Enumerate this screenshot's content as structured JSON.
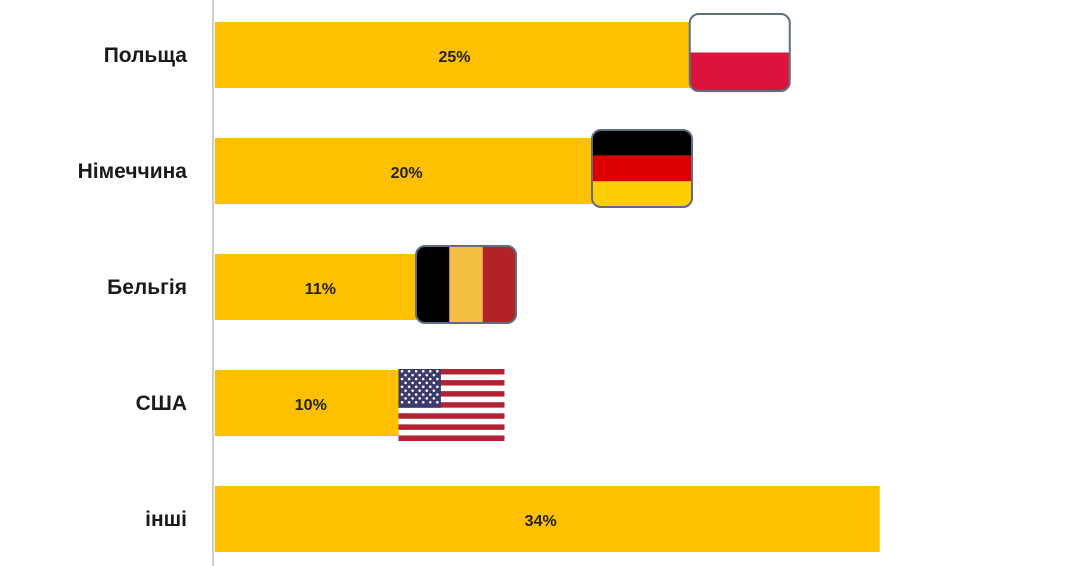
{
  "chart_data": {
    "type": "bar",
    "orientation": "horizontal",
    "categories": [
      "Польща",
      "Німеччина",
      "Бельгія",
      "США",
      "інші"
    ],
    "values": [
      25,
      20,
      11,
      10,
      34
    ],
    "value_labels": [
      "25%",
      "20%",
      "11%",
      "10%",
      "34%"
    ],
    "flags": [
      "poland-flag-icon",
      "germany-flag-icon",
      "belgium-flag-icon",
      "usa-flag-icon",
      ""
    ],
    "bar_color": "#FFC000",
    "xlim": [
      0,
      34
    ],
    "grid": false,
    "legend": "none"
  },
  "flag_colors": {
    "poland": [
      "#FFFFFF",
      "#DC143C"
    ],
    "germany": [
      "#000000",
      "#DD0000",
      "#FFCE00"
    ],
    "belgium": [
      "#000000",
      "#F4BE41",
      "#B22328"
    ],
    "usa": [
      "#B22234",
      "#FFFFFF",
      "#3C3B6E"
    ]
  }
}
